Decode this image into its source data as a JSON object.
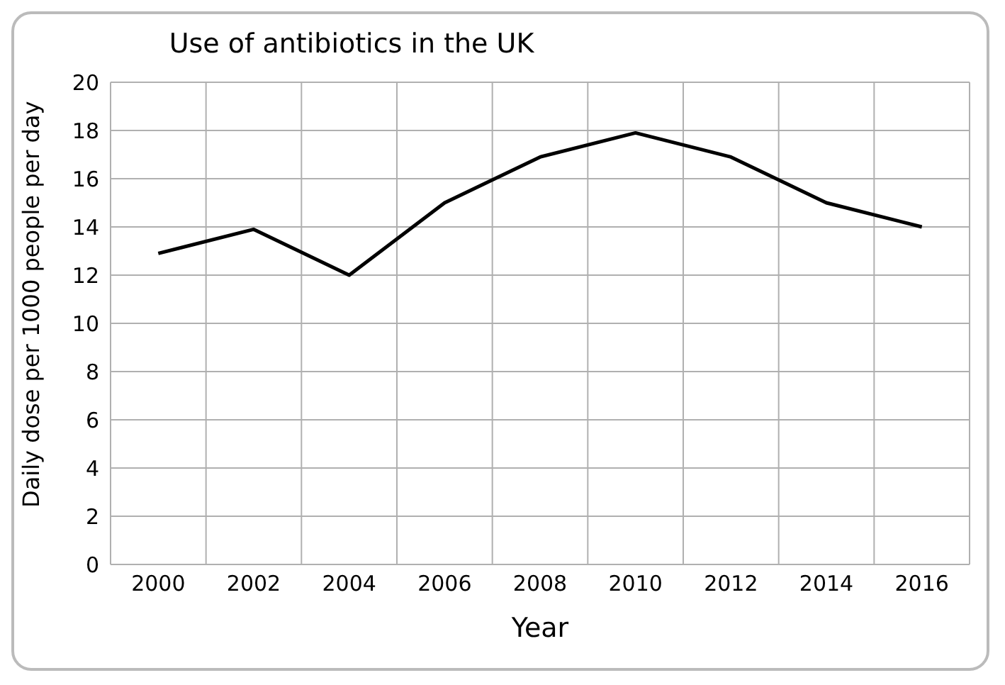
{
  "chart_data": {
    "type": "line",
    "title": "Use of antibiotics in the UK",
    "xlabel": "Year",
    "ylabel": "Daily dose per 1000 people per day",
    "categories": [
      "2000",
      "2002",
      "2004",
      "2006",
      "2008",
      "2010",
      "2012",
      "2014",
      "2016"
    ],
    "series": [
      {
        "color": "#000000",
        "values": [
          12.9,
          13.9,
          12,
          15,
          16.9,
          17.9,
          16.9,
          15,
          14
        ]
      }
    ],
    "ylim": [
      0,
      20
    ],
    "yticks": [
      0,
      2,
      4,
      6,
      8,
      10,
      12,
      14,
      16,
      18,
      20
    ],
    "grid": true,
    "legend": false,
    "marker": "none",
    "line_style": "solid"
  }
}
